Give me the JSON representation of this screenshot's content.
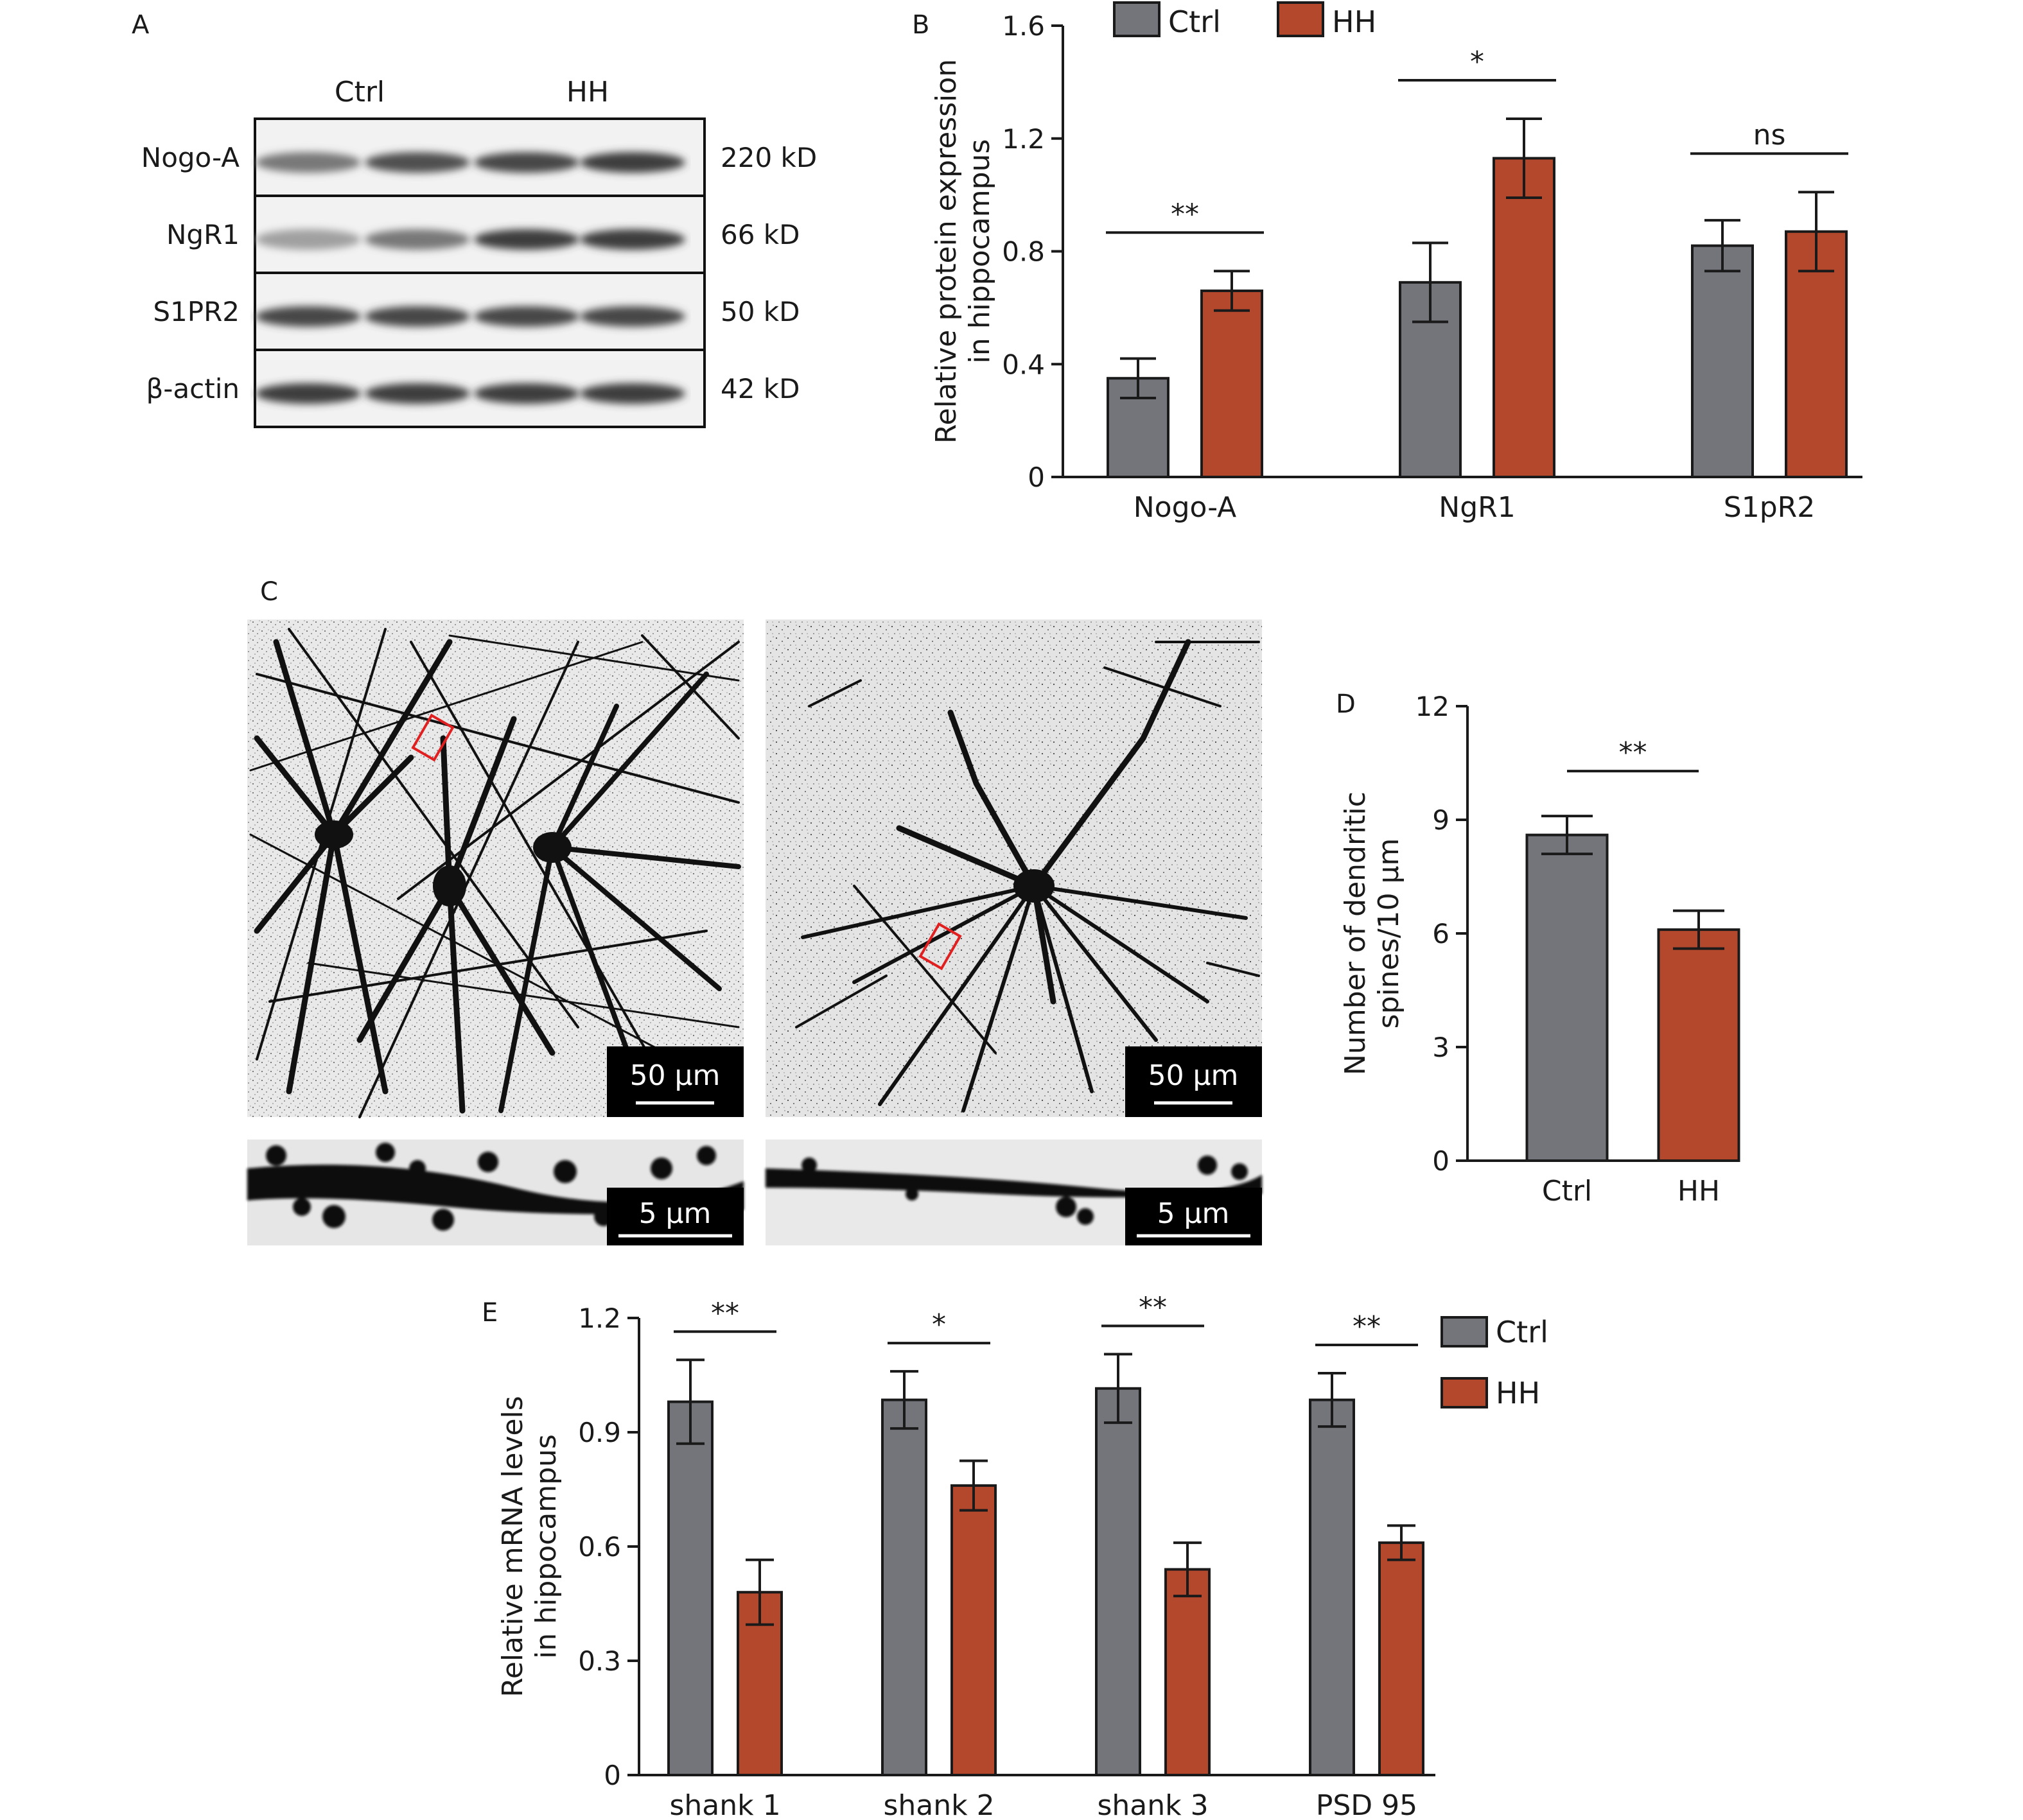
{
  "colors": {
    "ctrl": "#73757b",
    "hh": "#b4482d",
    "axis": "#1a1a1a",
    "scalebar_bg": "#000000",
    "roi": "#e02020"
  },
  "panel_a": {
    "label": "A",
    "groups": [
      "Ctrl",
      "HH"
    ],
    "rows": [
      {
        "protein": "Nogo-A",
        "size": "220 kD",
        "intensity": [
          0.55,
          0.75,
          0.8,
          0.85
        ]
      },
      {
        "protein": "NgR1",
        "size": "66 kD",
        "intensity": [
          0.35,
          0.55,
          0.85,
          0.85
        ]
      },
      {
        "protein": "S1PR2",
        "size": "50 kD",
        "intensity": [
          0.8,
          0.8,
          0.8,
          0.8
        ]
      },
      {
        "protein": "β-actin",
        "size": "42 kD",
        "intensity": [
          0.85,
          0.85,
          0.85,
          0.85
        ]
      }
    ]
  },
  "panel_c": {
    "label": "C",
    "scale_large": "50 μm",
    "scale_small": "5 μm",
    "images": [
      "neuron-ctrl",
      "neuron-hh"
    ]
  },
  "chart_data": [
    {
      "panel": "B",
      "type": "bar",
      "title": "",
      "xlabel": "",
      "ylabel": "Relative protein expression in hippocampus",
      "ylabel_lines": [
        "Relative protein expression",
        "in hippocampus"
      ],
      "ylim": [
        0,
        1.6
      ],
      "yticks": [
        0,
        0.4,
        0.8,
        1.2,
        1.6
      ],
      "ytick_labels": [
        "0",
        "0.4",
        "0.8",
        "1.2",
        "1.6"
      ],
      "categories": [
        "Nogo-A",
        "NgR1",
        "S1pR2"
      ],
      "series": [
        {
          "name": "Ctrl",
          "values": [
            0.35,
            0.69,
            0.82
          ],
          "errors": [
            0.07,
            0.14,
            0.09
          ]
        },
        {
          "name": "HH",
          "values": [
            0.66,
            1.13,
            0.87
          ],
          "errors": [
            0.07,
            0.14,
            0.14
          ]
        }
      ],
      "significance": [
        "**",
        "*",
        "ns"
      ],
      "legend": {
        "position": "top",
        "entries": [
          "Ctrl",
          "HH"
        ]
      }
    },
    {
      "panel": "D",
      "type": "bar",
      "title": "",
      "xlabel": "",
      "ylabel": "Number of dendritic spines/10 μm",
      "ylabel_lines": [
        "Number of dendritic",
        "spines/10 μm"
      ],
      "ylim": [
        0,
        12
      ],
      "yticks": [
        0,
        3,
        6,
        9,
        12
      ],
      "ytick_labels": [
        "0",
        "3",
        "6",
        "9",
        "12"
      ],
      "categories": [
        "Ctrl",
        "HH"
      ],
      "values": [
        8.6,
        6.1
      ],
      "errors": [
        0.5,
        0.5
      ],
      "significance": [
        "**"
      ]
    },
    {
      "panel": "E",
      "type": "bar",
      "title": "",
      "xlabel": "",
      "ylabel": "Relative mRNA levels in hippocampus",
      "ylabel_lines": [
        "Relative mRNA levels",
        "in hippocampus"
      ],
      "ylim": [
        0,
        1.2
      ],
      "yticks": [
        0,
        0.3,
        0.6,
        0.9,
        1.2
      ],
      "ytick_labels": [
        "0",
        "0.3",
        "0.6",
        "0.9",
        "1.2"
      ],
      "categories": [
        "shank 1",
        "shank 2",
        "shank 3",
        "PSD 95"
      ],
      "series": [
        {
          "name": "Ctrl",
          "values": [
            0.98,
            0.985,
            1.015,
            0.985
          ],
          "errors": [
            0.11,
            0.075,
            0.09,
            0.07
          ]
        },
        {
          "name": "HH",
          "values": [
            0.48,
            0.76,
            0.54,
            0.61
          ],
          "errors": [
            0.085,
            0.065,
            0.07,
            0.045
          ]
        }
      ],
      "significance": [
        "**",
        "*",
        "**",
        "**"
      ],
      "legend": {
        "position": "right",
        "entries": [
          "Ctrl",
          "HH"
        ]
      }
    }
  ]
}
